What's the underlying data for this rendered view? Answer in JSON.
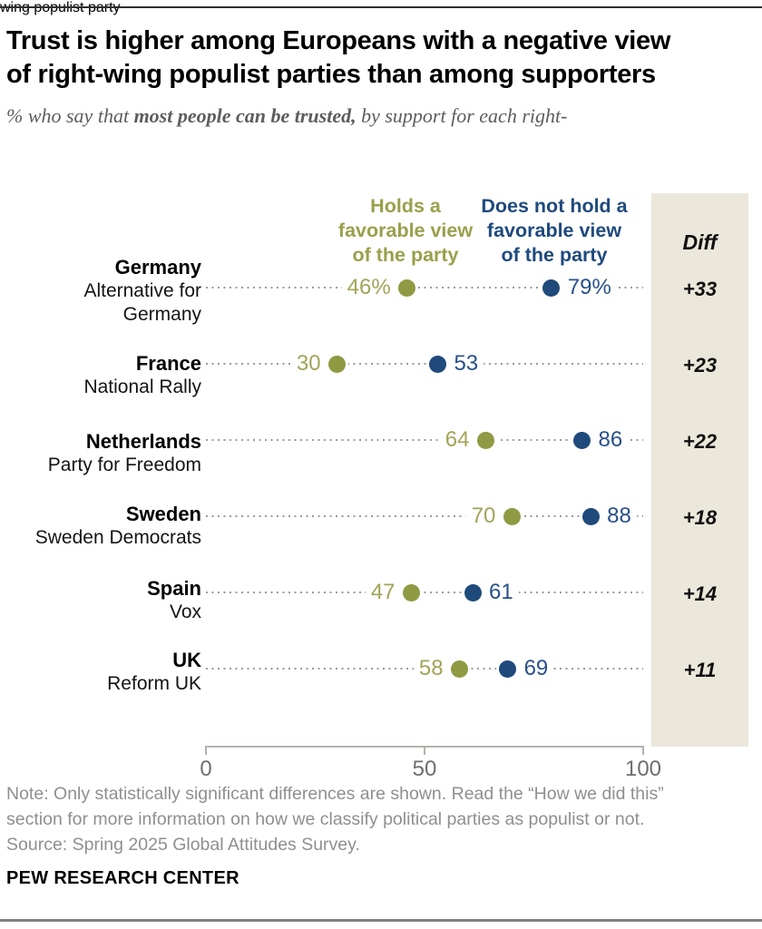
{
  "header": {
    "title_lines": [
      "Trust is higher among Europeans with a negative view",
      "of right-wing populist parties than among supporters"
    ],
    "subtitle_prefix": "% who say that ",
    "subtitle_bold": "most people can be trusted,",
    "subtitle_rest": " by support for each right-",
    "subtitle_line2": "wing populist party"
  },
  "legend": {
    "favorable_lines": [
      "Holds a",
      "favorable view",
      "of the party"
    ],
    "not_favorable_lines": [
      "Does not hold a",
      "favorable view",
      "of the party"
    ],
    "diff_label": "Diff"
  },
  "chart_data": {
    "type": "scatter",
    "subtype": "dot-plot",
    "axis": {
      "min": 0,
      "max": 100,
      "ticks": [
        {
          "label": "0",
          "value": 0
        },
        {
          "label": "50",
          "value": 50
        },
        {
          "label": "100",
          "value": 100
        }
      ]
    },
    "series": [
      {
        "name": "Holds a favorable view of the party",
        "color": "#8f9a43",
        "values": [
          46,
          30,
          64,
          70,
          47,
          58
        ]
      },
      {
        "name": "Does not hold a favorable view of the party",
        "color": "#1f4a7b",
        "values": [
          79,
          53,
          86,
          88,
          61,
          69
        ]
      }
    ],
    "rows": [
      {
        "country": "Germany",
        "party": "Alternative for Germany",
        "favorable": 46,
        "not_favorable": 79,
        "favorable_label": "46%",
        "not_favorable_label": "79%",
        "diff": "+33"
      },
      {
        "country": "France",
        "party": "National Rally",
        "favorable": 30,
        "not_favorable": 53,
        "favorable_label": "30",
        "not_favorable_label": "53",
        "diff": "+23"
      },
      {
        "country": "Netherlands",
        "party": "Party for Freedom",
        "favorable": 64,
        "not_favorable": 86,
        "favorable_label": "64",
        "not_favorable_label": "86",
        "diff": "+22"
      },
      {
        "country": "Sweden",
        "party": "Sweden Democrats",
        "favorable": 70,
        "not_favorable": 88,
        "favorable_label": "70",
        "not_favorable_label": "88",
        "diff": "+18"
      },
      {
        "country": "Spain",
        "party": "Vox",
        "favorable": 47,
        "not_favorable": 61,
        "favorable_label": "47",
        "not_favorable_label": "61",
        "diff": "+14"
      },
      {
        "country": "UK",
        "party": "Reform UK",
        "favorable": 58,
        "not_favorable": 69,
        "favorable_label": "58",
        "not_favorable_label": "69",
        "diff": "+11"
      }
    ]
  },
  "colors": {
    "favorable_olive": "#8f9a43",
    "not_favorable_blue": "#1f4a7b",
    "diff_column_beige": "#ebe7da",
    "leader_dots_gray": "#9b9b9b"
  },
  "footer": {
    "note_lines": [
      "Note: Only statistically significant differences are shown. Read the “How we did this”",
      "section for more information on how we classify political parties as populist or not.",
      "Source: Spring 2025 Global Attitudes Survey."
    ],
    "brand": "PEW RESEARCH CENTER"
  }
}
